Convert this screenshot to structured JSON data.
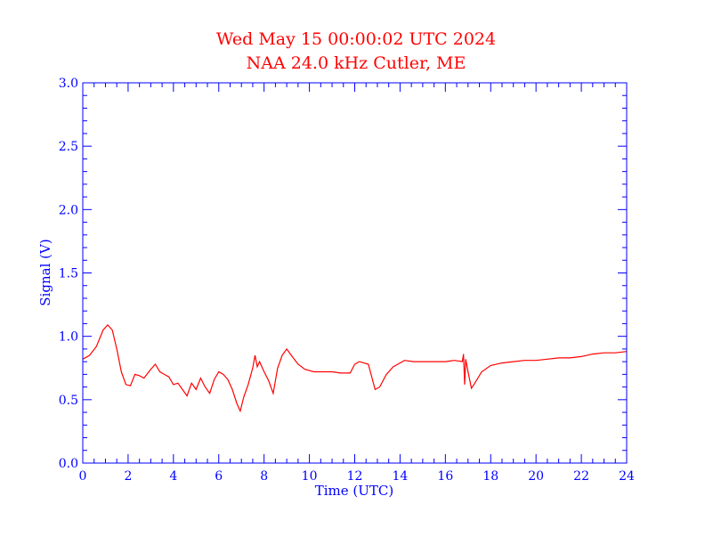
{
  "chart_data": {
    "type": "line",
    "title": "Wed May 15 00:00:02 UTC 2024",
    "subtitle": "NAA 24.0 kHz Cutler, ME",
    "xlabel": "Time (UTC)",
    "ylabel": "Signal (V)",
    "xlim": [
      0,
      24
    ],
    "ylim": [
      0,
      3.0
    ],
    "x_ticks": [
      "0",
      "2",
      "4",
      "6",
      "8",
      "10",
      "12",
      "14",
      "16",
      "18",
      "20",
      "22",
      "24"
    ],
    "y_ticks": [
      "0.0",
      "0.5",
      "1.0",
      "1.5",
      "2.0",
      "2.5",
      "3.0"
    ],
    "grid": false,
    "colors": {
      "title": "#ff0000",
      "axes": "#0000ff",
      "line": "#ff0000"
    },
    "series": [
      {
        "x": [
          0.0,
          0.3,
          0.6,
          0.9,
          1.1,
          1.3,
          1.5,
          1.7,
          1.9,
          2.1,
          2.3,
          2.5,
          2.7,
          3.0,
          3.2,
          3.4,
          3.6,
          3.8,
          4.0,
          4.2,
          4.4,
          4.6,
          4.8,
          5.0,
          5.2,
          5.4,
          5.6,
          5.8,
          6.0,
          6.2,
          6.4,
          6.6,
          6.8,
          6.95,
          7.1,
          7.3,
          7.5,
          7.6,
          7.7,
          7.8,
          8.0,
          8.2,
          8.4,
          8.6,
          8.8,
          9.0,
          9.2,
          9.5,
          9.8,
          10.2,
          10.6,
          11.0,
          11.4,
          11.8,
          12.0,
          12.2,
          12.6,
          12.9,
          13.1,
          13.4,
          13.7,
          13.9,
          14.2,
          14.6,
          15.0,
          15.5,
          16.0,
          16.4,
          16.75,
          16.8,
          16.85,
          16.9,
          17.0,
          17.15,
          17.3,
          17.6,
          18.0,
          18.5,
          19.0,
          19.5,
          20.0,
          20.5,
          21.0,
          21.5,
          22.0,
          22.5,
          23.0,
          23.5,
          24.0
        ],
        "y": [
          0.82,
          0.85,
          0.92,
          1.05,
          1.09,
          1.05,
          0.9,
          0.72,
          0.62,
          0.61,
          0.7,
          0.69,
          0.67,
          0.74,
          0.78,
          0.72,
          0.7,
          0.68,
          0.62,
          0.63,
          0.58,
          0.53,
          0.63,
          0.58,
          0.67,
          0.6,
          0.55,
          0.66,
          0.72,
          0.7,
          0.66,
          0.58,
          0.47,
          0.41,
          0.52,
          0.62,
          0.75,
          0.85,
          0.76,
          0.8,
          0.72,
          0.65,
          0.55,
          0.75,
          0.85,
          0.9,
          0.85,
          0.78,
          0.74,
          0.72,
          0.72,
          0.72,
          0.71,
          0.71,
          0.78,
          0.8,
          0.78,
          0.58,
          0.6,
          0.7,
          0.76,
          0.78,
          0.81,
          0.8,
          0.8,
          0.8,
          0.8,
          0.81,
          0.8,
          0.86,
          0.62,
          0.82,
          0.72,
          0.59,
          0.63,
          0.72,
          0.77,
          0.79,
          0.8,
          0.81,
          0.81,
          0.82,
          0.83,
          0.83,
          0.84,
          0.86,
          0.87,
          0.87,
          0.88
        ]
      }
    ]
  }
}
